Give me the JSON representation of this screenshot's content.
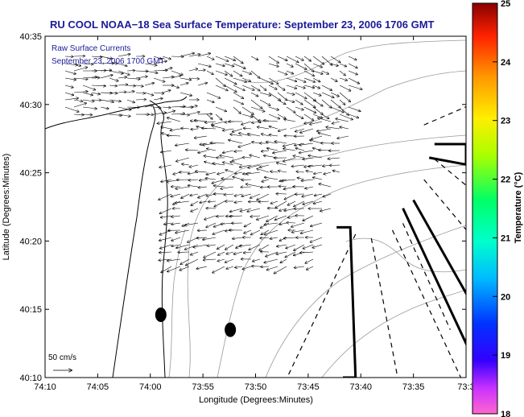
{
  "chart_data": {
    "type": "vector_map",
    "title": "RU COOL  NOAA−18  Sea Surface Temperature:  September 23, 2006 1706 GMT",
    "annotation_line1": "Raw Surface Currents",
    "annotation_line2": "September 23, 2006 1700 GMT",
    "xlabel": "Longitude (Degrees:Minutes)",
    "ylabel": "Latitude (Degrees:Minutes)",
    "x_ticks": [
      "74:10",
      "74:05",
      "74:00",
      "73:55",
      "73:50",
      "73:45",
      "73:40",
      "73:35",
      "73:3"
    ],
    "y_ticks": [
      "40:35",
      "40:30",
      "40:25",
      "40:20",
      "40:15",
      "40:10"
    ],
    "xlim_minutes": [
      4450,
      4410
    ],
    "ylim_minutes": [
      2410,
      2435
    ],
    "colorbar": {
      "label": "Temperature (°C)",
      "ticks": [
        "25",
        "24",
        "23",
        "22",
        "21",
        "20",
        "19",
        "18"
      ],
      "range": [
        18,
        25
      ]
    },
    "scale_label": "50 cm/s",
    "markers": [
      {
        "lon_min": 4439.0,
        "lat_min": 2414.6
      },
      {
        "lon_min": 4432.4,
        "lat_min": 2413.5
      }
    ],
    "corridors_solid": [
      [
        [
          4413,
          2427.1
        ],
        [
          4410,
          2427.1
        ],
        [
          4410,
          2425.6
        ],
        [
          4413.5,
          2426.1
        ]
      ],
      [
        [
          4415,
          2423
        ],
        [
          4409.5,
          2415.5
        ],
        [
          4410,
          2412.5
        ],
        [
          4416,
          2422.4
        ]
      ],
      [
        [
          4422.3,
          2421.0
        ],
        [
          4421.0,
          2421.0
        ],
        [
          4420.5,
          2410.0
        ],
        [
          4421.7,
          2410.0
        ]
      ]
    ],
    "corridors_dashed": [
      [
        [
          4414,
          2428.5
        ],
        [
          4408,
          2430.5
        ]
      ],
      [
        [
          4413,
          2426
        ],
        [
          4408,
          2422.8
        ]
      ],
      [
        [
          4414,
          2424.5
        ],
        [
          4408,
          2419.0
        ]
      ],
      [
        [
          4420.5,
          2420.5
        ],
        [
          4427,
          2410.0
        ]
      ],
      [
        [
          4419,
          2420.2
        ],
        [
          4416.5,
          2410.0
        ]
      ],
      [
        [
          4417,
          2420.8
        ],
        [
          4410.5,
          2410.0
        ]
      ],
      [
        [
          4416,
          2421.3
        ],
        [
          4411.5,
          2413.5
        ]
      ]
    ]
  }
}
